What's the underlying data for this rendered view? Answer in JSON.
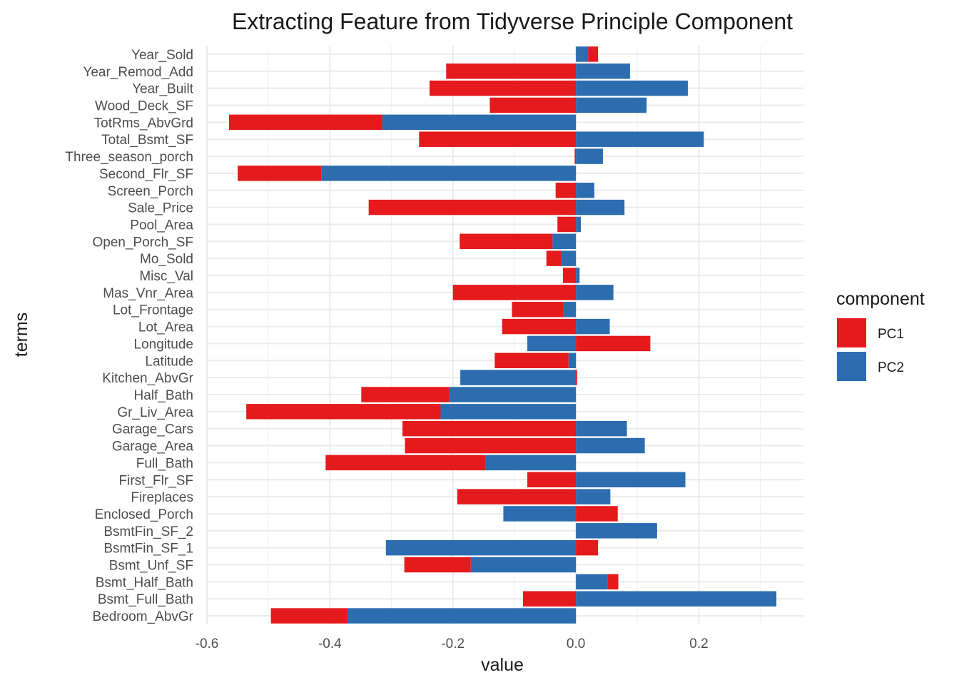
{
  "chart_data": {
    "type": "bar",
    "orientation": "horizontal",
    "stacking": "overlaid-stacked",
    "title": "Extracting Feature from Tidyverse Principle Component",
    "xlabel": "value",
    "ylabel": "terms",
    "xlim": [
      -0.6,
      0.37
    ],
    "x_ticks": [
      -0.6,
      -0.4,
      -0.2,
      0.0,
      0.2
    ],
    "x_tick_labels": [
      "-0.6",
      "-0.4",
      "-0.2",
      "0.0",
      "0.2"
    ],
    "grid": true,
    "legend": {
      "title": "component",
      "position": "right"
    },
    "categories": [
      "Year_Sold",
      "Year_Remod_Add",
      "Year_Built",
      "Wood_Deck_SF",
      "TotRms_AbvGrd",
      "Total_Bsmt_SF",
      "Three_season_porch",
      "Second_Flr_SF",
      "Screen_Porch",
      "Sale_Price",
      "Pool_Area",
      "Open_Porch_SF",
      "Mo_Sold",
      "Misc_Val",
      "Mas_Vnr_Area",
      "Lot_Frontage",
      "Lot_Area",
      "Longitude",
      "Latitude",
      "Kitchen_AbvGr",
      "Half_Bath",
      "Gr_Liv_Area",
      "Garage_Cars",
      "Garage_Area",
      "Full_Bath",
      "First_Flr_SF",
      "Fireplaces",
      "Enclosed_Porch",
      "BsmtFin_SF_2",
      "BsmtFin_SF_1",
      "Bsmt_Unf_SF",
      "Bsmt_Half_Bath",
      "Bsmt_Full_Bath",
      "Bedroom_AbvGr"
    ],
    "series": [
      {
        "name": "PC1",
        "color": "#E41A1C",
        "values": [
          0.016,
          -0.211,
          -0.238,
          -0.14,
          -0.249,
          -0.255,
          -0.002,
          -0.136,
          -0.033,
          -0.337,
          -0.03,
          -0.151,
          -0.024,
          -0.021,
          -0.2,
          -0.084,
          -0.12,
          0.121,
          -0.12,
          0.002,
          -0.143,
          -0.316,
          -0.282,
          -0.278,
          -0.26,
          -0.079,
          -0.193,
          0.068,
          0.0,
          0.036,
          -0.108,
          0.017,
          -0.086,
          -0.124
        ]
      },
      {
        "name": "PC2",
        "color": "#2C6DB0",
        "values": [
          0.02,
          0.088,
          0.182,
          0.115,
          -0.315,
          0.208,
          0.044,
          -0.414,
          0.03,
          0.079,
          0.008,
          -0.038,
          -0.024,
          0.006,
          0.061,
          -0.02,
          0.055,
          -0.079,
          -0.012,
          -0.188,
          -0.206,
          -0.22,
          0.083,
          0.112,
          -0.147,
          0.178,
          0.056,
          -0.118,
          0.132,
          -0.309,
          -0.171,
          0.052,
          0.326,
          -0.372
        ]
      }
    ]
  }
}
